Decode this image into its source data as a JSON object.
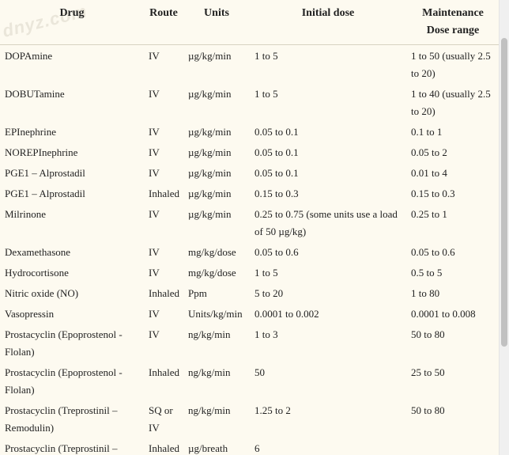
{
  "watermark": "dnyz.com",
  "table": {
    "headers": {
      "drug": "Drug",
      "route": "Route",
      "units": "Units",
      "initial": "Initial dose",
      "maintenance_line1": "Maintenance",
      "maintenance_line2": "Dose range"
    },
    "rows": [
      {
        "drug": "DOPAmine",
        "route": "IV",
        "units": "µg/kg/min",
        "initial": "1 to 5",
        "maintenance": "1 to 50 (usually 2.5 to 20)"
      },
      {
        "drug": "DOBUTamine",
        "route": "IV",
        "units": "µg/kg/min",
        "initial": "1 to 5",
        "maintenance": "1 to 40 (usually 2.5 to 20)"
      },
      {
        "drug": "EPInephrine",
        "route": "IV",
        "units": "µg/kg/min",
        "initial": "0.05 to 0.1",
        "maintenance": "0.1 to 1"
      },
      {
        "drug": "NOREPInephrine",
        "route": "IV",
        "units": "µg/kg/min",
        "initial": "0.05 to 0.1",
        "maintenance": "0.05 to 2"
      },
      {
        "drug": "PGE1 – Alprostadil",
        "route": "IV",
        "units": "µg/kg/min",
        "initial": "0.05 to 0.1",
        "maintenance": "0.01 to 4"
      },
      {
        "drug": "PGE1 – Alprostadil",
        "route": "Inhaled",
        "units": "µg/kg/min",
        "initial": "0.15 to 0.3",
        "maintenance": "0.15 to 0.3"
      },
      {
        "drug": "Milrinone",
        "route": "IV",
        "units": "µg/kg/min",
        "initial": "0.25 to 0.75 (some units use a load of 50 µg/kg)",
        "maintenance": "0.25 to 1"
      },
      {
        "drug": "Dexamethasone",
        "route": "IV",
        "units": "mg/kg/dose",
        "initial": "0.05 to 0.6",
        "maintenance": "0.05 to 0.6"
      },
      {
        "drug": "Hydrocortisone",
        "route": "IV",
        "units": "mg/kg/dose",
        "initial": "1 to 5",
        "maintenance": "0.5 to 5"
      },
      {
        "drug": "Nitric oxide (NO)",
        "route": "Inhaled",
        "units": "Ppm",
        "initial": "5 to 20",
        "maintenance": "1 to 80"
      },
      {
        "drug": "Vasopressin",
        "route": "IV",
        "units": "Units/kg/min",
        "initial": "0.0001 to 0.002",
        "maintenance": "0.0001 to 0.008"
      },
      {
        "drug": "Prostacyclin (Epoprostenol - Flolan)",
        "route": "IV",
        "units": "ng/kg/min",
        "initial": "1 to 3",
        "maintenance": "50 to 80"
      },
      {
        "drug": "Prostacyclin (Epoprostenol - Flolan)",
        "route": "Inhaled",
        "units": "ng/kg/min",
        "initial": "50",
        "maintenance": "25 to 50"
      },
      {
        "drug": "Prostacyclin (Treprostinil – Remodulin)",
        "route": "SQ or IV",
        "units": "ng/kg/min",
        "initial": "1.25 to 2",
        "maintenance": "50 to 80"
      },
      {
        "drug": "Prostacyclin (Treprostinil –",
        "route": "Inhaled",
        "units": "µg/breath",
        "initial": "6",
        "maintenance": ""
      }
    ]
  }
}
